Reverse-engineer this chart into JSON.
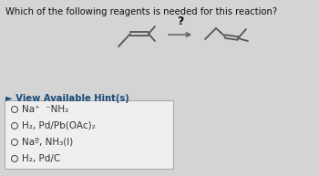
{
  "title": "Which of the following reagents is needed for this reaction?",
  "hint_text": "► View Available Hint(s)",
  "options": [
    "Na⁺  ⁻NH₂",
    "H₂, Pd/Pb(OAc)₂",
    "Naº, NH₃(l)",
    "H₂, Pd/C"
  ],
  "question_mark": "?",
  "bg_color": "#d4d4d4",
  "box_bg": "#efefef",
  "title_color": "#111111",
  "hint_color": "#1a4a7a",
  "option_color": "#333333",
  "title_fontsize": 7.2,
  "option_fontsize": 7.5,
  "hint_fontsize": 7.2
}
